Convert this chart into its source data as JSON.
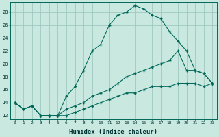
{
  "xlabel": "Humidex (Indice chaleur)",
  "bg_color": "#c8e8e0",
  "grid_color": "#a0c8c0",
  "line_color": "#006858",
  "x_ticks": [
    0,
    1,
    2,
    3,
    4,
    5,
    6,
    7,
    8,
    9,
    10,
    11,
    12,
    13,
    14,
    15,
    16,
    17,
    18,
    19,
    20,
    21,
    22,
    23
  ],
  "xlim": [
    -0.5,
    23.5
  ],
  "ylim": [
    11.5,
    29.5
  ],
  "y_ticks": [
    12,
    14,
    16,
    18,
    20,
    22,
    24,
    26,
    28
  ],
  "line1_x": [
    0,
    1,
    2,
    3,
    4,
    5,
    6,
    7,
    8,
    9,
    10,
    11,
    12,
    13,
    14,
    15,
    16,
    17,
    18,
    19,
    20,
    21,
    22,
    23
  ],
  "line1_y": [
    14,
    13,
    13.5,
    12,
    12,
    12,
    15,
    16.5,
    19,
    22,
    23,
    26,
    27.5,
    28,
    29,
    28.5,
    27.5,
    27,
    25,
    23.5,
    22,
    19,
    18.5,
    17
  ],
  "line2_x": [
    0,
    1,
    2,
    3,
    4,
    5,
    6,
    7,
    8,
    9,
    10,
    11,
    12,
    13,
    14,
    15,
    16,
    17,
    18,
    19,
    20,
    21,
    22,
    23
  ],
  "line2_y": [
    14,
    13,
    13.5,
    12,
    12,
    12,
    13,
    13.5,
    14,
    15,
    15.5,
    16,
    17,
    18,
    18.5,
    19,
    19.5,
    20,
    20.5,
    22,
    19,
    19,
    18.5,
    17
  ],
  "line3_x": [
    0,
    1,
    2,
    3,
    4,
    5,
    6,
    7,
    8,
    9,
    10,
    11,
    12,
    13,
    14,
    15,
    16,
    17,
    18,
    19,
    20,
    21,
    22,
    23
  ],
  "line3_y": [
    14,
    13,
    13.5,
    12,
    12,
    12,
    12,
    12.5,
    13,
    13.5,
    14,
    14.5,
    15,
    15.5,
    15.5,
    16,
    16.5,
    16.5,
    16.5,
    17,
    17,
    17,
    16.5,
    17
  ]
}
